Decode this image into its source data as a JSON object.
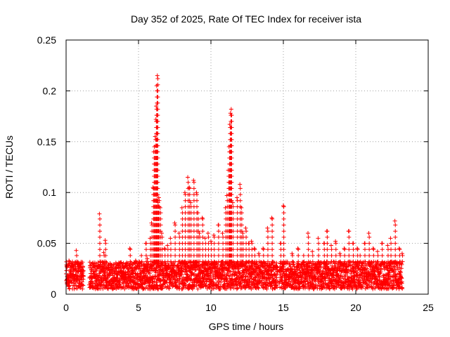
{
  "chart_data": {
    "type": "scatter",
    "title": "Day 352 of 2025, Rate Of TEC Index for receiver ista",
    "xlabel": "GPS time / hours",
    "ylabel": "ROTI / TECUs",
    "xlim": [
      0,
      25
    ],
    "ylim": [
      0,
      0.25
    ],
    "xticks": [
      0,
      5,
      10,
      15,
      20,
      25
    ],
    "xtick_labels": [
      "0",
      "5",
      "10",
      "15",
      "20",
      "25"
    ],
    "yticks": [
      0,
      0.05,
      0.1,
      0.15,
      0.2,
      0.25
    ],
    "ytick_labels": [
      "0",
      "0.05",
      "0.1",
      "0.15",
      "0.2",
      "0.25"
    ],
    "grid": true,
    "marker": "+",
    "series": [
      {
        "name": "ROTI",
        "color": "#ff0000",
        "x": [
          0.0,
          0.2,
          0.4,
          0.5,
          0.7,
          0.8,
          1.0,
          1.1,
          1.7,
          2.0,
          2.3,
          2.4,
          2.6,
          2.7,
          2.8,
          2.9,
          3.0,
          3.2,
          3.5,
          3.8,
          4.0,
          4.2,
          4.4,
          4.6,
          4.8,
          5.0,
          5.2,
          5.4,
          5.5,
          5.6,
          5.8,
          5.9,
          6.0,
          6.05,
          6.1,
          6.15,
          6.2,
          6.22,
          6.25,
          6.3,
          6.35,
          6.4,
          6.5,
          6.6,
          6.8,
          7.0,
          7.2,
          7.5,
          7.8,
          8.0,
          8.2,
          8.4,
          8.5,
          8.6,
          8.8,
          9.0,
          9.1,
          9.2,
          9.4,
          9.6,
          9.8,
          10.0,
          10.2,
          10.5,
          10.8,
          11.0,
          11.1,
          11.2,
          11.25,
          11.3,
          11.35,
          11.4,
          11.5,
          11.8,
          12.0,
          12.1,
          12.2,
          12.4,
          12.6,
          12.8,
          13.0,
          13.3,
          13.6,
          13.9,
          14.2,
          14.4,
          14.8,
          15.0,
          15.2,
          15.6,
          16.0,
          16.4,
          16.7,
          17.0,
          17.4,
          17.8,
          18.0,
          18.3,
          18.6,
          18.9,
          19.2,
          19.5,
          19.8,
          20.1,
          20.3,
          20.6,
          20.9,
          21.2,
          21.5,
          21.8,
          22.2,
          22.4,
          22.7,
          23.0,
          23.2
        ],
        "y": [
          0.02,
          0.033,
          0.018,
          0.026,
          0.043,
          0.022,
          0.03,
          0.015,
          0.017,
          0.022,
          0.079,
          0.025,
          0.041,
          0.053,
          0.031,
          0.018,
          0.024,
          0.015,
          0.02,
          0.031,
          0.02,
          0.028,
          0.045,
          0.02,
          0.033,
          0.025,
          0.038,
          0.028,
          0.05,
          0.035,
          0.055,
          0.07,
          0.105,
          0.14,
          0.145,
          0.155,
          0.172,
          0.185,
          0.205,
          0.215,
          0.09,
          0.095,
          0.085,
          0.06,
          0.045,
          0.048,
          0.055,
          0.07,
          0.06,
          0.085,
          0.1,
          0.115,
          0.105,
          0.09,
          0.112,
          0.1,
          0.08,
          0.06,
          0.075,
          0.055,
          0.06,
          0.052,
          0.058,
          0.068,
          0.06,
          0.085,
          0.097,
          0.122,
          0.145,
          0.167,
          0.178,
          0.182,
          0.09,
          0.095,
          0.108,
          0.085,
          0.06,
          0.065,
          0.05,
          0.052,
          0.045,
          0.04,
          0.045,
          0.065,
          0.075,
          0.02,
          0.05,
          0.087,
          0.03,
          0.04,
          0.045,
          0.038,
          0.06,
          0.042,
          0.055,
          0.05,
          0.062,
          0.048,
          0.052,
          0.04,
          0.045,
          0.062,
          0.05,
          0.045,
          0.038,
          0.05,
          0.06,
          0.045,
          0.042,
          0.05,
          0.048,
          0.055,
          0.072,
          0.045,
          0.04
        ],
        "band": {
          "segments": [
            [
              0,
              1.2
            ],
            [
              1.6,
              4.6
            ],
            [
              4.6,
              14.6
            ],
            [
              14.7,
              23.2
            ]
          ],
          "low": 0.005,
          "high": 0.032
        }
      }
    ]
  }
}
